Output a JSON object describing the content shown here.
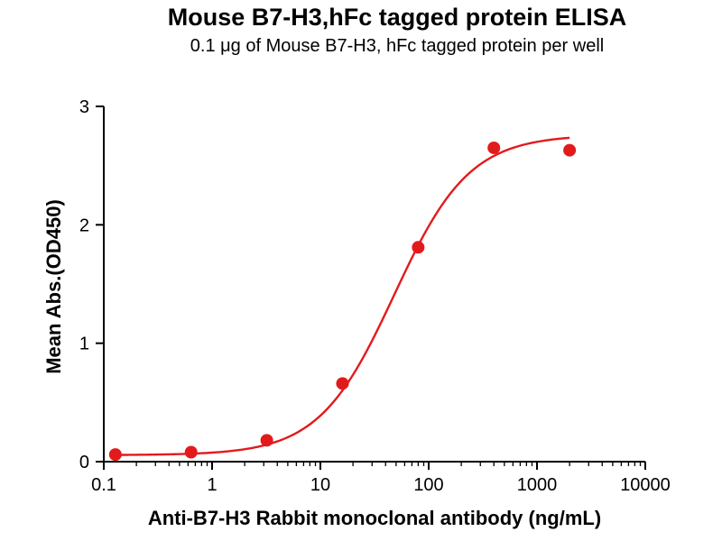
{
  "chart_data": {
    "type": "scatter",
    "title": "Mouse B7-H3,hFc tagged protein ELISA",
    "subtitle": "0.1 μg of Mouse B7-H3, hFc tagged protein per well",
    "xlabel": "Anti-B7-H3 Rabbit monoclonal antibody (ng/mL)",
    "ylabel": "Mean Abs.(OD450)",
    "x_scale": "log10",
    "xlim": [
      0.1,
      10000
    ],
    "ylim": [
      0,
      3
    ],
    "x_ticks": [
      0.1,
      1,
      10,
      100,
      1000,
      10000
    ],
    "x_tick_labels": [
      "0.1",
      "1",
      "10",
      "100",
      "1000",
      "10000"
    ],
    "y_ticks": [
      0,
      1,
      2,
      3
    ],
    "y_tick_labels": [
      "0",
      "1",
      "2",
      "3"
    ],
    "grid": false,
    "legend_position": "none",
    "axis_color": "#000000",
    "series": [
      {
        "name": "Mouse B7-H3, hFc tagged protein",
        "color": "#e31a1c",
        "marker": "circle",
        "points": [
          {
            "x": 0.128,
            "y": 0.06
          },
          {
            "x": 0.64,
            "y": 0.08
          },
          {
            "x": 3.2,
            "y": 0.18
          },
          {
            "x": 16,
            "y": 0.66
          },
          {
            "x": 80,
            "y": 1.81
          },
          {
            "x": 400,
            "y": 2.65
          },
          {
            "x": 2000,
            "y": 2.63
          }
        ]
      }
    ],
    "fit_curve": {
      "model": "4PL",
      "bottom": 0.055,
      "top": 2.76,
      "ec50": 48,
      "hill": 1.25,
      "x_start": 0.128,
      "x_end": 2000
    }
  }
}
